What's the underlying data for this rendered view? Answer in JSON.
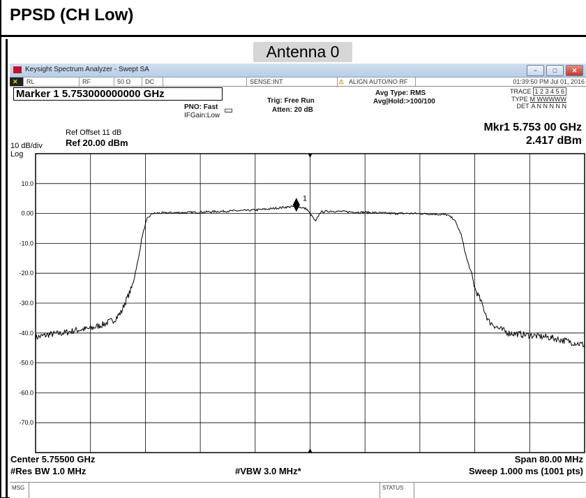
{
  "document": {
    "title": "PPSD (CH Low)",
    "section_label": "Antenna 0"
  },
  "window": {
    "title": "Keysight Spectrum Analyzer - Swept SA",
    "minimize": "−",
    "restore": "□",
    "close": "✕"
  },
  "status_row": {
    "rl": "RL",
    "rf": "RF",
    "impedance": "50 Ω",
    "coupling": "DC",
    "sense": "SENSE:INT",
    "align": "ALIGN AUTO/NO RF",
    "datetime": "01:39:50 PM Jul 01, 2016"
  },
  "header": {
    "marker_readout": "Marker 1 5.753000000000 GHz",
    "pno": "PNO: Fast",
    "ifgain": "IFGain:Low",
    "trig": "Trig: Free Run",
    "atten": "Atten: 20 dB",
    "avg_type": "Avg Type: RMS",
    "avg_hold": "Avg|Hold:>100/100",
    "trace_label": "TRACE",
    "trace_values": "1 2 3 4 5 6",
    "type_label": "TYPE",
    "type_values": "M WWWWW",
    "det_label": "DET",
    "det_values": "A N N N N N"
  },
  "marker_result": {
    "freq": "Mkr1 5.753 00 GHz",
    "amp": "2.417 dBm",
    "label": "1"
  },
  "reference": {
    "offset": "Ref Offset 11 dB",
    "level": "Ref 20.00 dBm",
    "scale": "10 dB/div",
    "scale_type": "Log"
  },
  "footer": {
    "center": "Center 5.75500 GHz",
    "res_bw": "#Res BW 1.0 MHz",
    "vbw": "#VBW 3.0 MHz*",
    "span": "Span 80.00 MHz",
    "sweep": "Sweep  1.000 ms (1001 pts)"
  },
  "msgbar": {
    "msg": "MSG",
    "status": "STATUS"
  },
  "colors": {
    "trace": "#000000",
    "grid": "#000000",
    "plot_bg": "#ffffff"
  },
  "chart_data": {
    "type": "line",
    "xlabel": "",
    "ylabel": "",
    "x_unit": "GHz",
    "y_unit": "dBm",
    "xlim": [
      5.715,
      5.795
    ],
    "ylim": [
      -80,
      20
    ],
    "y_ticks": [
      10,
      0,
      -10,
      -20,
      -30,
      -40,
      -50,
      -60,
      -70
    ],
    "y_tick_labels": [
      "10.0",
      "0.00",
      "-10.0",
      "-20.0",
      "-30.0",
      "-40.0",
      "-50.0",
      "-60.0",
      "-70.0"
    ],
    "grid": true,
    "series": [
      {
        "x": [
          5.715,
          5.717,
          5.719,
          5.721,
          5.723,
          5.725,
          5.7265,
          5.7275,
          5.728,
          5.729,
          5.7295,
          5.73,
          5.7305,
          5.7312,
          5.732,
          5.734,
          5.737,
          5.74,
          5.743,
          5.746,
          5.749,
          5.751,
          5.753,
          5.7545,
          5.7553,
          5.7558,
          5.7565,
          5.758,
          5.761,
          5.764,
          5.767,
          5.77,
          5.773,
          5.775,
          5.776,
          5.777,
          5.7778,
          5.7785,
          5.779,
          5.78,
          5.781,
          5.7825,
          5.784,
          5.786,
          5.788,
          5.79,
          5.792,
          5.795
        ],
        "y": [
          -41.5,
          -40.5,
          -40.0,
          -39.0,
          -38.5,
          -37.0,
          -35.5,
          -33.0,
          -30.0,
          -25.0,
          -20.0,
          -15.0,
          -8.0,
          -2.0,
          0.0,
          0.2,
          0.3,
          0.5,
          0.8,
          1.0,
          1.5,
          2.0,
          2.417,
          1.5,
          -1.0,
          -2.8,
          0.5,
          0.8,
          0.5,
          0.3,
          0.0,
          0.0,
          -0.2,
          -0.5,
          -2.0,
          -7.0,
          -15.0,
          -20.0,
          -25.0,
          -30.0,
          -36.0,
          -38.5,
          -40.0,
          -40.5,
          -41.0,
          -41.5,
          -42.5,
          -44.0
        ]
      }
    ],
    "marker": {
      "x": 5.753,
      "y": 2.417,
      "label": "1"
    }
  }
}
